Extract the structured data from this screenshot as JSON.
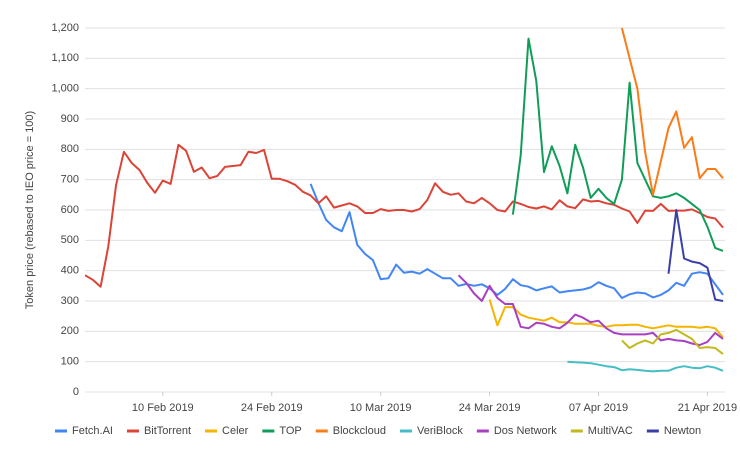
{
  "chart_data": {
    "type": "line",
    "y_label": "Token price (rebased to IEO price = 100)",
    "x": [
      "2019-01-31",
      "2019-02-01",
      "2019-02-02",
      "2019-02-03",
      "2019-02-04",
      "2019-02-05",
      "2019-02-06",
      "2019-02-07",
      "2019-02-08",
      "2019-02-09",
      "2019-02-10",
      "2019-02-11",
      "2019-02-12",
      "2019-02-13",
      "2019-02-14",
      "2019-02-15",
      "2019-02-16",
      "2019-02-17",
      "2019-02-18",
      "2019-02-19",
      "2019-02-20",
      "2019-02-21",
      "2019-02-22",
      "2019-02-23",
      "2019-02-24",
      "2019-02-25",
      "2019-02-26",
      "2019-02-27",
      "2019-02-28",
      "2019-03-01",
      "2019-03-02",
      "2019-03-03",
      "2019-03-04",
      "2019-03-05",
      "2019-03-06",
      "2019-03-07",
      "2019-03-08",
      "2019-03-09",
      "2019-03-10",
      "2019-03-11",
      "2019-03-12",
      "2019-03-13",
      "2019-03-14",
      "2019-03-15",
      "2019-03-16",
      "2019-03-17",
      "2019-03-18",
      "2019-03-19",
      "2019-03-20",
      "2019-03-21",
      "2019-03-22",
      "2019-03-23",
      "2019-03-24",
      "2019-03-25",
      "2019-03-26",
      "2019-03-27",
      "2019-03-28",
      "2019-03-29",
      "2019-03-30",
      "2019-03-31",
      "2019-04-01",
      "2019-04-02",
      "2019-04-03",
      "2019-04-04",
      "2019-04-05",
      "2019-04-06",
      "2019-04-07",
      "2019-04-08",
      "2019-04-09",
      "2019-04-10",
      "2019-04-11",
      "2019-04-12",
      "2019-04-13",
      "2019-04-14",
      "2019-04-15",
      "2019-04-16",
      "2019-04-17",
      "2019-04-18",
      "2019-04-19",
      "2019-04-20",
      "2019-04-21",
      "2019-04-22",
      "2019-04-23"
    ],
    "xlim": [
      "2019-01-31",
      "2019-04-23"
    ],
    "xticks": [
      {
        "value": "2019-02-10",
        "label": "10 Feb 2019"
      },
      {
        "value": "2019-02-24",
        "label": "24 Feb 2019"
      },
      {
        "value": "2019-03-10",
        "label": "10 Mar 2019"
      },
      {
        "value": "2019-03-24",
        "label": "24 Mar 2019"
      },
      {
        "value": "2019-04-07",
        "label": "07 Apr 2019"
      },
      {
        "value": "2019-04-21",
        "label": "21 Apr 2019"
      }
    ],
    "ylim": [
      0,
      1200
    ],
    "yticks": [
      0,
      100,
      200,
      300,
      400,
      500,
      600,
      700,
      800,
      900,
      {
        "value": 1000,
        "label": "1,000"
      },
      {
        "value": 1100,
        "label": "1,100"
      },
      {
        "value": 1200,
        "label": "1,200"
      }
    ],
    "grid": true,
    "legend": "bottom",
    "series": [
      {
        "name": "Fetch.AI",
        "color": "#4285f4",
        "values": [
          null,
          null,
          null,
          null,
          null,
          null,
          null,
          null,
          null,
          null,
          null,
          null,
          null,
          null,
          null,
          null,
          null,
          null,
          null,
          null,
          null,
          null,
          null,
          null,
          null,
          null,
          null,
          null,
          null,
          686,
          623,
          567,
          543,
          530,
          593,
          485,
          455,
          435,
          372,
          375,
          420,
          393,
          397,
          390,
          405,
          390,
          375,
          375,
          350,
          356,
          350,
          355,
          342,
          320,
          340,
          372,
          352,
          347,
          335,
          342,
          348,
          328,
          332,
          335,
          338,
          345,
          362,
          350,
          342,
          310,
          322,
          328,
          325,
          312,
          320,
          335,
          360,
          350,
          390,
          395,
          390,
          355,
          320
        ]
      },
      {
        "name": "BitTorrent",
        "color": "#db4437",
        "values": [
          385,
          370,
          347,
          480,
          683,
          792,
          755,
          732,
          690,
          657,
          697,
          686,
          815,
          795,
          726,
          740,
          705,
          712,
          742,
          745,
          748,
          792,
          788,
          798,
          703,
          703,
          695,
          683,
          660,
          648,
          622,
          645,
          608,
          615,
          622,
          612,
          590,
          590,
          603,
          597,
          600,
          600,
          595,
          603,
          633,
          688,
          660,
          650,
          655,
          628,
          622,
          640,
          622,
          600,
          595,
          628,
          620,
          610,
          605,
          612,
          602,
          632,
          612,
          606,
          635,
          628,
          630,
          622,
          617,
          605,
          595,
          557,
          598,
          597,
          620,
          597,
          598,
          598,
          602,
          590,
          577,
          572,
          542
        ]
      },
      {
        "name": "Celer",
        "color": "#f4b400",
        "values": [
          null,
          null,
          null,
          null,
          null,
          null,
          null,
          null,
          null,
          null,
          null,
          null,
          null,
          null,
          null,
          null,
          null,
          null,
          null,
          null,
          null,
          null,
          null,
          null,
          null,
          null,
          null,
          null,
          null,
          null,
          null,
          null,
          null,
          null,
          null,
          null,
          null,
          null,
          null,
          null,
          null,
          null,
          null,
          null,
          null,
          null,
          null,
          null,
          null,
          null,
          null,
          null,
          305,
          220,
          280,
          280,
          255,
          245,
          240,
          235,
          245,
          230,
          230,
          225,
          225,
          225,
          218,
          215,
          220,
          220,
          222,
          222,
          215,
          210,
          215,
          220,
          215,
          215,
          215,
          212,
          215,
          210,
          180
        ]
      },
      {
        "name": "TOP",
        "color": "#0f9d58",
        "values": [
          null,
          null,
          null,
          null,
          null,
          null,
          null,
          null,
          null,
          null,
          null,
          null,
          null,
          null,
          null,
          null,
          null,
          null,
          null,
          null,
          null,
          null,
          null,
          null,
          null,
          null,
          null,
          null,
          null,
          null,
          null,
          null,
          null,
          null,
          null,
          null,
          null,
          null,
          null,
          null,
          null,
          null,
          null,
          null,
          null,
          null,
          null,
          null,
          null,
          null,
          null,
          null,
          null,
          null,
          null,
          585,
          780,
          1165,
          1025,
          725,
          810,
          745,
          655,
          815,
          740,
          640,
          670,
          640,
          620,
          700,
          1020,
          755,
          700,
          645,
          640,
          645,
          655,
          640,
          620,
          600,
          545,
          475,
          465
        ]
      },
      {
        "name": "Blockcloud",
        "color": "#fa7b17",
        "values": [
          null,
          null,
          null,
          null,
          null,
          null,
          null,
          null,
          null,
          null,
          null,
          null,
          null,
          null,
          null,
          null,
          null,
          null,
          null,
          null,
          null,
          null,
          null,
          null,
          null,
          null,
          null,
          null,
          null,
          null,
          null,
          null,
          null,
          null,
          null,
          null,
          null,
          null,
          null,
          null,
          null,
          null,
          null,
          null,
          null,
          null,
          null,
          null,
          null,
          null,
          null,
          null,
          null,
          null,
          null,
          null,
          null,
          null,
          null,
          null,
          null,
          null,
          null,
          null,
          null,
          null,
          null,
          null,
          null,
          1200,
          1100,
          1000,
          790,
          650,
          760,
          870,
          925,
          805,
          840,
          705,
          735,
          735,
          705
        ]
      },
      {
        "name": "VeriBlock",
        "color": "#46bdc6",
        "values": [
          null,
          null,
          null,
          null,
          null,
          null,
          null,
          null,
          null,
          null,
          null,
          null,
          null,
          null,
          null,
          null,
          null,
          null,
          null,
          null,
          null,
          null,
          null,
          null,
          null,
          null,
          null,
          null,
          null,
          null,
          null,
          null,
          null,
          null,
          null,
          null,
          null,
          null,
          null,
          null,
          null,
          null,
          null,
          null,
          null,
          null,
          null,
          null,
          null,
          null,
          null,
          null,
          null,
          null,
          null,
          null,
          null,
          null,
          null,
          null,
          null,
          null,
          100,
          98,
          97,
          95,
          90,
          85,
          82,
          72,
          75,
          73,
          70,
          68,
          70,
          70,
          80,
          85,
          80,
          78,
          85,
          80,
          70
        ]
      },
      {
        "name": "Dos Network",
        "color": "#a93fc1",
        "values": [
          null,
          null,
          null,
          null,
          null,
          null,
          null,
          null,
          null,
          null,
          null,
          null,
          null,
          null,
          null,
          null,
          null,
          null,
          null,
          null,
          null,
          null,
          null,
          null,
          null,
          null,
          null,
          null,
          null,
          null,
          null,
          null,
          null,
          null,
          null,
          null,
          null,
          null,
          null,
          null,
          null,
          null,
          null,
          null,
          null,
          null,
          null,
          null,
          385,
          360,
          325,
          300,
          350,
          310,
          290,
          290,
          215,
          210,
          228,
          225,
          215,
          210,
          228,
          255,
          245,
          230,
          235,
          210,
          195,
          190,
          190,
          190,
          190,
          195,
          170,
          175,
          170,
          168,
          160,
          155,
          165,
          195,
          175
        ]
      },
      {
        "name": "MultiVAC",
        "color": "#c2b91c",
        "values": [
          null,
          null,
          null,
          null,
          null,
          null,
          null,
          null,
          null,
          null,
          null,
          null,
          null,
          null,
          null,
          null,
          null,
          null,
          null,
          null,
          null,
          null,
          null,
          null,
          null,
          null,
          null,
          null,
          null,
          null,
          null,
          null,
          null,
          null,
          null,
          null,
          null,
          null,
          null,
          null,
          null,
          null,
          null,
          null,
          null,
          null,
          null,
          null,
          null,
          null,
          null,
          null,
          null,
          null,
          null,
          null,
          null,
          null,
          null,
          null,
          null,
          null,
          null,
          null,
          null,
          null,
          null,
          null,
          null,
          170,
          145,
          160,
          170,
          160,
          190,
          195,
          205,
          190,
          175,
          145,
          148,
          145,
          125
        ]
      },
      {
        "name": "Newton",
        "color": "#3b3fa8",
        "values": [
          null,
          null,
          null,
          null,
          null,
          null,
          null,
          null,
          null,
          null,
          null,
          null,
          null,
          null,
          null,
          null,
          null,
          null,
          null,
          null,
          null,
          null,
          null,
          null,
          null,
          null,
          null,
          null,
          null,
          null,
          null,
          null,
          null,
          null,
          null,
          null,
          null,
          null,
          null,
          null,
          null,
          null,
          null,
          null,
          null,
          null,
          null,
          null,
          null,
          null,
          null,
          null,
          null,
          null,
          null,
          null,
          null,
          null,
          null,
          null,
          null,
          null,
          null,
          null,
          null,
          null,
          null,
          null,
          null,
          null,
          null,
          null,
          null,
          null,
          null,
          390,
          600,
          440,
          430,
          425,
          410,
          305,
          300
        ]
      }
    ]
  }
}
